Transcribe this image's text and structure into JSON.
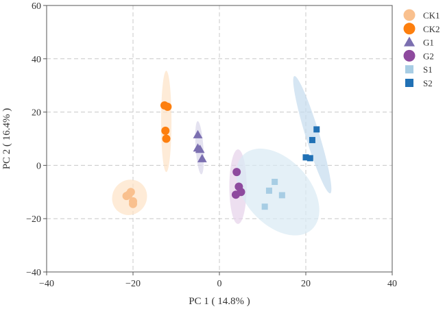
{
  "chart_data": {
    "type": "scatter",
    "title": "",
    "xlabel": "PC 1 ( 14.8% )",
    "ylabel": "PC 2 ( 16.4% )",
    "xlim": [
      -40,
      40
    ],
    "ylim": [
      -40,
      60
    ],
    "xticks": [
      -40,
      -20,
      0,
      20,
      40
    ],
    "yticks": [
      -40,
      -20,
      0,
      20,
      40,
      60
    ],
    "xtick_labels": [
      "−40",
      "−20",
      "0",
      "20",
      "40"
    ],
    "ytick_labels": [
      "−40",
      "−20",
      "0",
      "20",
      "40",
      "60"
    ],
    "grid": "dashed",
    "legend_position": "right",
    "confidence_ellipses": true,
    "series": [
      {
        "name": "CK1",
        "marker": "circle",
        "color": "#f9c08e",
        "points": [
          [
            -21.5,
            -11.5
          ],
          [
            -20.5,
            -10
          ],
          [
            -20,
            -13.5
          ],
          [
            -20,
            -14.5
          ],
          [
            -21,
            -11
          ]
        ]
      },
      {
        "name": "CK2",
        "marker": "circle",
        "color": "#fd7f0e",
        "points": [
          [
            -12.7,
            22.5
          ],
          [
            -12,
            22
          ],
          [
            -12.5,
            13
          ],
          [
            -12.3,
            10
          ]
        ]
      },
      {
        "name": "G1",
        "marker": "triangle",
        "color": "#7b6fb0",
        "points": [
          [
            -5,
            11.5
          ],
          [
            -5,
            6.5
          ],
          [
            -4.5,
            6
          ],
          [
            -4,
            2.5
          ]
        ]
      },
      {
        "name": "G2",
        "marker": "circle",
        "color": "#8e4a9e",
        "points": [
          [
            4,
            -2.5
          ],
          [
            4.5,
            -8
          ],
          [
            5,
            -10
          ],
          [
            3.8,
            -11
          ]
        ]
      },
      {
        "name": "S1",
        "marker": "square",
        "color": "#a7cde4",
        "points": [
          [
            12.8,
            -6.2
          ],
          [
            11.5,
            -9.5
          ],
          [
            14.5,
            -11.2
          ],
          [
            10.5,
            -15.5
          ]
        ]
      },
      {
        "name": "S2",
        "marker": "square",
        "color": "#2171b5",
        "points": [
          [
            22.5,
            13.5
          ],
          [
            21.5,
            9.5
          ],
          [
            20,
            3
          ],
          [
            21,
            2.7
          ]
        ]
      }
    ],
    "ellipses": [
      {
        "group": "CK1",
        "color": "#fde2c6",
        "center": [
          -20.8,
          -12
        ],
        "rx": 4.2,
        "ry": 6.4,
        "angle": -52
      },
      {
        "group": "CK2",
        "color": "#fde2c6",
        "center": [
          -12.3,
          16.5
        ],
        "rx": 1.2,
        "ry": 19,
        "angle": 0
      },
      {
        "group": "G1",
        "color": "#d9d6ea",
        "center": [
          -4.6,
          6.6
        ],
        "rx": 0.9,
        "ry": 10,
        "angle": -4
      },
      {
        "group": "G2",
        "color": "#e5d2ea",
        "center": [
          4.3,
          -8
        ],
        "rx": 2,
        "ry": 14,
        "angle": 0
      },
      {
        "group": "S1",
        "color": "#d9eaf4",
        "center": [
          13.5,
          -10
        ],
        "rx": 7.5,
        "ry": 19,
        "angle": -42
      },
      {
        "group": "S2",
        "color": "#c5dcee",
        "center": [
          21.5,
          11.5
        ],
        "rx": 1.6,
        "ry": 23,
        "angle": -17
      }
    ]
  }
}
